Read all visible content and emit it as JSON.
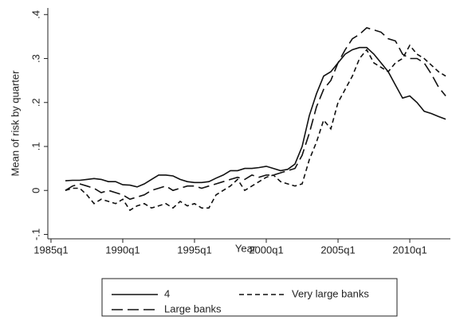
{
  "chart_data": {
    "type": "line",
    "x_label": "Year",
    "y_label": "Mean of risk by quarter",
    "x": [
      1986,
      1986.5,
      1987,
      1987.5,
      1988,
      1988.5,
      1989,
      1989.5,
      1990,
      1990.5,
      1991,
      1991.5,
      1992,
      1992.5,
      1993,
      1993.5,
      1994,
      1994.5,
      1995,
      1995.5,
      1996,
      1996.5,
      1997,
      1997.5,
      1998,
      1998.5,
      1999,
      1999.5,
      2000,
      2000.5,
      2001,
      2001.5,
      2002,
      2002.5,
      2003,
      2003.5,
      2004,
      2004.5,
      2005,
      2005.5,
      2006,
      2006.5,
      2007,
      2007.5,
      2008,
      2008.5,
      2009,
      2009.5,
      2010,
      2010.5,
      2011,
      2011.5,
      2012,
      2012.5
    ],
    "series": [
      {
        "name": "4",
        "color": "#111111",
        "dash": "none",
        "values": [
          0.022,
          0.023,
          0.023,
          0.025,
          0.027,
          0.025,
          0.02,
          0.02,
          0.013,
          0.012,
          0.008,
          0.015,
          0.025,
          0.035,
          0.035,
          0.033,
          0.025,
          0.02,
          0.018,
          0.018,
          0.02,
          0.028,
          0.035,
          0.045,
          0.045,
          0.05,
          0.05,
          0.052,
          0.055,
          0.05,
          0.045,
          0.048,
          0.06,
          0.1,
          0.17,
          0.22,
          0.26,
          0.27,
          0.29,
          0.31,
          0.32,
          0.325,
          0.325,
          0.31,
          0.29,
          0.27,
          0.24,
          0.21,
          0.215,
          0.2,
          0.18,
          0.175,
          0.168,
          0.162
        ]
      },
      {
        "name": "Very large banks",
        "color": "#111111",
        "dash": "6 4",
        "values": [
          0,
          0.005,
          0.005,
          -0.01,
          -0.03,
          -0.02,
          -0.025,
          -0.03,
          -0.02,
          -0.045,
          -0.035,
          -0.03,
          -0.04,
          -0.035,
          -0.03,
          -0.04,
          -0.025,
          -0.035,
          -0.03,
          -0.04,
          -0.04,
          -0.01,
          0,
          0.01,
          0.025,
          0,
          0.01,
          0.02,
          0.03,
          0.035,
          0.02,
          0.015,
          0.01,
          0.015,
          0.07,
          0.11,
          0.16,
          0.14,
          0.2,
          0.23,
          0.26,
          0.3,
          0.32,
          0.29,
          0.28,
          0.27,
          0.29,
          0.3,
          0.33,
          0.31,
          0.3,
          0.285,
          0.27,
          0.26
        ]
      },
      {
        "name": "Large banks",
        "color": "#111111",
        "dash": "14 6",
        "values": [
          0,
          0.01,
          0.015,
          0.01,
          0.005,
          -0.005,
          0,
          -0.005,
          -0.01,
          -0.02,
          -0.015,
          -0.01,
          0,
          0.005,
          0.01,
          0,
          0.005,
          0.01,
          0.01,
          0.005,
          0.01,
          0.015,
          0.02,
          0.025,
          0.03,
          0.025,
          0.035,
          0.03,
          0.035,
          0.035,
          0.04,
          0.045,
          0.05,
          0.08,
          0.13,
          0.19,
          0.23,
          0.25,
          0.29,
          0.32,
          0.345,
          0.355,
          0.37,
          0.365,
          0.36,
          0.345,
          0.34,
          0.31,
          0.3,
          0.3,
          0.29,
          0.265,
          0.235,
          0.215
        ]
      }
    ],
    "xlim": [
      1984.78,
      2012.83
    ],
    "xticks": [
      {
        "value": 1985,
        "label": "1985q1"
      },
      {
        "value": 1990,
        "label": "1990q1"
      },
      {
        "value": 1995,
        "label": "1995q1"
      },
      {
        "value": 2000,
        "label": "2000q1"
      },
      {
        "value": 2005,
        "label": "2005q1"
      },
      {
        "value": 2010,
        "label": "2010q1"
      }
    ],
    "ylim": [
      -0.11,
      0.415
    ],
    "yticks": [
      {
        "value": -0.1,
        "label": "-.1"
      },
      0,
      {
        "value": 0.1,
        "label": ".1"
      },
      {
        "value": 0.2,
        "label": ".2"
      },
      {
        "value": 0.3,
        "label": ".3"
      },
      {
        "value": 0.4,
        "label": ".4"
      }
    ],
    "legend": "bottom"
  }
}
